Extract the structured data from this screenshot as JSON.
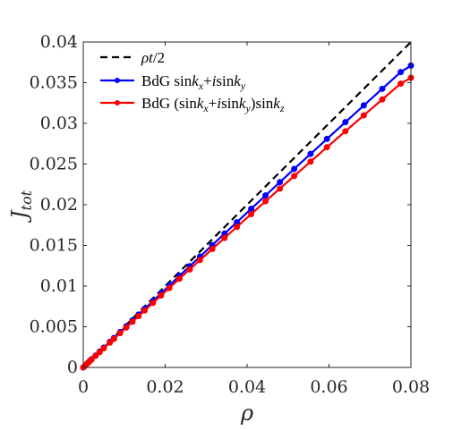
{
  "chart_data": {
    "type": "line",
    "xlabel": "ρ",
    "ylabel": "J",
    "ylabel_sub": "tot",
    "xlim": [
      0,
      0.08
    ],
    "ylim": [
      0,
      0.04
    ],
    "xticks": [
      0,
      0.02,
      0.04,
      0.06,
      0.08
    ],
    "xtick_labels": [
      "0",
      "0.02",
      "0.04",
      "0.06",
      "0.08"
    ],
    "yticks": [
      0,
      0.005,
      0.01,
      0.015,
      0.02,
      0.025,
      0.03,
      0.035,
      0.04
    ],
    "ytick_labels": [
      "0",
      "0.005",
      "0.01",
      "0.015",
      "0.02",
      "0.025",
      "0.03",
      "0.035",
      "0.04"
    ],
    "grid": false,
    "legend_position": "top-left",
    "series": [
      {
        "name": "ρt/2",
        "legend_parts": [
          [
            "ρ",
            "i"
          ],
          [
            "t",
            "i"
          ],
          [
            "/2",
            "n"
          ]
        ],
        "color": "#000000",
        "style": "dashed",
        "markers": false,
        "x": [
          0,
          0.08
        ],
        "y": [
          0,
          0.04
        ]
      },
      {
        "name": "BdG sink_x+isink_y",
        "legend_parts": [
          [
            "BdG sin",
            "n"
          ],
          [
            "k",
            "i"
          ],
          [
            "x",
            "sub"
          ],
          [
            "+",
            "n"
          ],
          [
            "i",
            "i"
          ],
          [
            "sin",
            "n"
          ],
          [
            "k",
            "i"
          ],
          [
            "y",
            "sub"
          ]
        ],
        "color": "#0000ff",
        "style": "solid",
        "markers": true,
        "x": [
          0,
          0.0005,
          0.001,
          0.0015,
          0.002,
          0.003,
          0.004,
          0.005,
          0.0065,
          0.0075,
          0.009,
          0.0105,
          0.012,
          0.0135,
          0.015,
          0.017,
          0.019,
          0.021,
          0.0235,
          0.026,
          0.0285,
          0.0315,
          0.0345,
          0.0375,
          0.041,
          0.0445,
          0.048,
          0.0515,
          0.0555,
          0.0595,
          0.064,
          0.0685,
          0.073,
          0.0775,
          0.08
        ],
        "y": [
          0,
          0.00025,
          0.0005,
          0.00075,
          0.001,
          0.00145,
          0.00195,
          0.00243,
          0.00315,
          0.00363,
          0.00435,
          0.00506,
          0.00578,
          0.0065,
          0.00721,
          0.00816,
          0.00912,
          0.01007,
          0.01126,
          0.01244,
          0.01362,
          0.01503,
          0.01645,
          0.01785,
          0.0195,
          0.02114,
          0.02277,
          0.0244,
          0.02625,
          0.02809,
          0.03015,
          0.03221,
          0.03425,
          0.0363,
          0.0371
        ]
      },
      {
        "name": "BdG (sink_x+isink_y)sink_z",
        "legend_parts": [
          [
            "BdG (sin",
            "n"
          ],
          [
            "k",
            "i"
          ],
          [
            "x",
            "sub"
          ],
          [
            "+",
            "n"
          ],
          [
            "i",
            "i"
          ],
          [
            "sin",
            "n"
          ],
          [
            "k",
            "i"
          ],
          [
            "y",
            "sub"
          ],
          [
            ")sin",
            "n"
          ],
          [
            "k",
            "i"
          ],
          [
            "z",
            "sub"
          ]
        ],
        "color": "#ff0000",
        "style": "solid",
        "markers": true,
        "x": [
          0,
          0.0005,
          0.001,
          0.0015,
          0.002,
          0.003,
          0.004,
          0.005,
          0.0065,
          0.0075,
          0.009,
          0.0105,
          0.012,
          0.0135,
          0.015,
          0.017,
          0.019,
          0.021,
          0.0235,
          0.026,
          0.0285,
          0.0315,
          0.0345,
          0.0375,
          0.041,
          0.0445,
          0.048,
          0.0515,
          0.0555,
          0.0595,
          0.064,
          0.0685,
          0.073,
          0.0775,
          0.08
        ],
        "y": [
          0,
          0.00024,
          0.00048,
          0.00072,
          0.00095,
          0.00142,
          0.00188,
          0.00235,
          0.00305,
          0.00352,
          0.00422,
          0.00491,
          0.00561,
          0.0063,
          0.007,
          0.00792,
          0.00884,
          0.00976,
          0.01091,
          0.01205,
          0.0132,
          0.01456,
          0.01592,
          0.01727,
          0.01885,
          0.02042,
          0.02198,
          0.02353,
          0.0253,
          0.02707,
          0.02903,
          0.03099,
          0.03294,
          0.03488,
          0.0356
        ]
      }
    ]
  }
}
